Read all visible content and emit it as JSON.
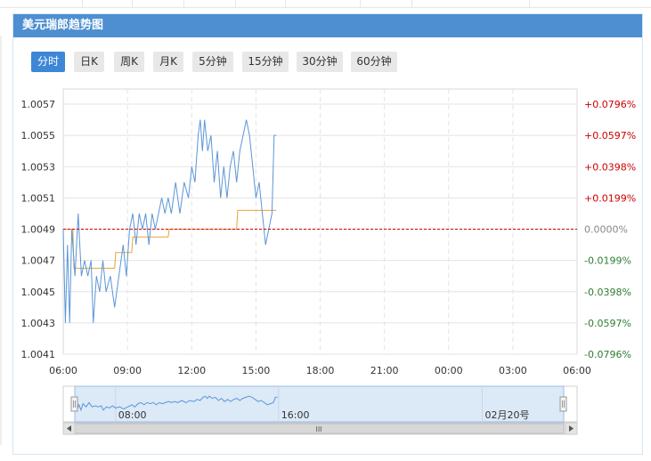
{
  "panel": {
    "title": "美元瑞郎趋势图"
  },
  "tabs": [
    {
      "label": "分时",
      "active": true
    },
    {
      "label": "日K",
      "active": false
    },
    {
      "label": "周K",
      "active": false
    },
    {
      "label": "月K",
      "active": false
    },
    {
      "label": "5分钟",
      "active": false
    },
    {
      "label": "15分钟",
      "active": false
    },
    {
      "label": "30分钟",
      "active": false
    },
    {
      "label": "60分钟",
      "active": false
    }
  ],
  "colors": {
    "price_line": "#5b96d6",
    "avg_line": "#e8a33a",
    "baseline": "#cc0000",
    "positive": "#cc0000",
    "negative": "#2e7d32",
    "neutral": "#888888",
    "navigator_fill": "#dce9f7"
  },
  "chart_data": {
    "type": "line",
    "x_ticks": [
      "06:00",
      "09:00",
      "12:00",
      "15:00",
      "18:00",
      "21:00",
      "00:00",
      "03:00",
      "06:00"
    ],
    "y_ticks": [
      "1.0057",
      "1.0055",
      "1.0053",
      "1.0051",
      "1.0049",
      "1.0047",
      "1.0045",
      "1.0043",
      "1.0041"
    ],
    "ylim": [
      1.0041,
      1.0057
    ],
    "baseline": 1.0049,
    "pct_ticks": [
      "+0.0796%",
      "+0.0597%",
      "+0.0398%",
      "+0.0199%",
      "0.0000%",
      "-0.0199%",
      "-0.0398%",
      "-0.0597%",
      "-0.0796%"
    ],
    "x_range_hours": [
      0,
      24
    ],
    "series": [
      {
        "role": "price",
        "points": [
          [
            0.0,
            1.0049
          ],
          [
            0.1,
            1.0043
          ],
          [
            0.2,
            1.0048
          ],
          [
            0.3,
            1.0043
          ],
          [
            0.4,
            1.0049
          ],
          [
            0.55,
            1.0046
          ],
          [
            0.7,
            1.005
          ],
          [
            0.85,
            1.0046
          ],
          [
            1.0,
            1.0047
          ],
          [
            1.15,
            1.0046
          ],
          [
            1.3,
            1.0047
          ],
          [
            1.4,
            1.0043
          ],
          [
            1.55,
            1.0046
          ],
          [
            1.7,
            1.0045
          ],
          [
            1.85,
            1.0047
          ],
          [
            2.0,
            1.0045
          ],
          [
            2.2,
            1.0046
          ],
          [
            2.4,
            1.0044
          ],
          [
            2.6,
            1.0046
          ],
          [
            2.8,
            1.0048
          ],
          [
            2.95,
            1.0046
          ],
          [
            3.1,
            1.0049
          ],
          [
            3.25,
            1.005
          ],
          [
            3.4,
            1.0048
          ],
          [
            3.55,
            1.005
          ],
          [
            3.7,
            1.0049
          ],
          [
            3.85,
            1.005
          ],
          [
            4.0,
            1.0048
          ],
          [
            4.15,
            1.005
          ],
          [
            4.3,
            1.0049
          ],
          [
            4.45,
            1.005
          ],
          [
            4.6,
            1.0051
          ],
          [
            4.75,
            1.005
          ],
          [
            4.9,
            1.0051
          ],
          [
            5.05,
            1.005
          ],
          [
            5.25,
            1.0052
          ],
          [
            5.45,
            1.005
          ],
          [
            5.65,
            1.0052
          ],
          [
            5.85,
            1.0051
          ],
          [
            6.0,
            1.0053
          ],
          [
            6.15,
            1.0052
          ],
          [
            6.3,
            1.0055
          ],
          [
            6.4,
            1.0056
          ],
          [
            6.5,
            1.0054
          ],
          [
            6.6,
            1.0056
          ],
          [
            6.75,
            1.0054
          ],
          [
            6.9,
            1.0055
          ],
          [
            7.05,
            1.0052
          ],
          [
            7.2,
            1.0054
          ],
          [
            7.35,
            1.0051
          ],
          [
            7.5,
            1.0053
          ],
          [
            7.65,
            1.0051
          ],
          [
            7.8,
            1.0053
          ],
          [
            7.95,
            1.0054
          ],
          [
            8.1,
            1.0052
          ],
          [
            8.25,
            1.0054
          ],
          [
            8.4,
            1.0055
          ],
          [
            8.55,
            1.0056
          ],
          [
            8.7,
            1.0055
          ],
          [
            8.85,
            1.0053
          ],
          [
            9.0,
            1.0051
          ],
          [
            9.15,
            1.0052
          ],
          [
            9.3,
            1.005
          ],
          [
            9.45,
            1.0048
          ],
          [
            9.6,
            1.0049
          ],
          [
            9.75,
            1.005
          ],
          [
            9.85,
            1.0055
          ],
          [
            9.95,
            1.0055
          ]
        ]
      },
      {
        "role": "average",
        "points": [
          [
            0.0,
            1.0049
          ],
          [
            0.45,
            1.0049
          ],
          [
            0.5,
            1.00465
          ],
          [
            2.4,
            1.00465
          ],
          [
            2.45,
            1.00475
          ],
          [
            3.2,
            1.00475
          ],
          [
            3.25,
            1.00485
          ],
          [
            4.9,
            1.00485
          ],
          [
            4.95,
            1.0049
          ],
          [
            6.4,
            1.0049
          ],
          [
            6.45,
            1.0049
          ],
          [
            8.1,
            1.0049
          ],
          [
            8.15,
            1.00502
          ],
          [
            9.95,
            1.00502
          ]
        ]
      }
    ],
    "navigator": {
      "labels": [
        "08:00",
        "16:00",
        "02月20号"
      ],
      "scrollbar_grip": "III"
    }
  }
}
